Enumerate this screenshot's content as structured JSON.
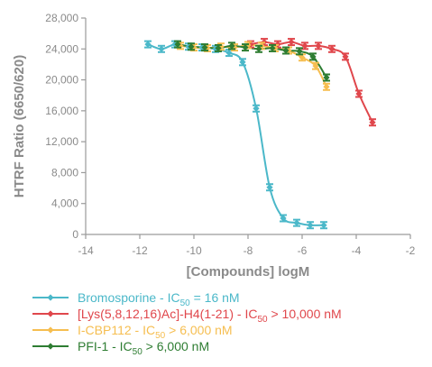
{
  "chart_data": {
    "type": "scatter",
    "xlabel": "[Compounds] logM",
    "ylabel": "HTRF Ratio (6650/620)",
    "xlim": [
      -14,
      -2
    ],
    "ylim": [
      0,
      28000
    ],
    "xticks": [
      -14,
      -12,
      -10,
      -8,
      -6,
      -4,
      -2
    ],
    "xtick_labels": [
      "-14",
      "-12",
      "-10",
      "-8",
      "-6",
      "-4",
      "-2"
    ],
    "yticks": [
      0,
      4000,
      8000,
      12000,
      16000,
      20000,
      24000,
      28000
    ],
    "ytick_labels": [
      "0",
      "4,000",
      "8,000",
      "12,000",
      "16,000",
      "20,000",
      "24,000",
      "28,000"
    ],
    "grid": false,
    "legend_position": "bottom",
    "series": [
      {
        "label_pre": "Bromosporine - IC",
        "label_sub": "50",
        "label_post": " = 16 nM",
        "color": "#4bb8c9",
        "x": [
          -11.7,
          -11.2,
          -10.7,
          -10.2,
          -9.7,
          -9.2,
          -8.7,
          -8.2,
          -7.7,
          -7.2,
          -6.7,
          -6.2,
          -5.7,
          -5.2
        ],
        "y": [
          24600,
          24000,
          24600,
          24300,
          24200,
          24000,
          23500,
          22300,
          16300,
          6100,
          2100,
          1500,
          1200,
          1200
        ],
        "curve": true
      },
      {
        "label_pre": "[Lys(5,8,12,16)Ac]-H4(1-21) - IC",
        "label_sub": "50",
        "label_post": " > 10,000 nM",
        "color": "#e0474c",
        "x": [
          -7.9,
          -7.4,
          -6.9,
          -6.4,
          -5.9,
          -5.4,
          -4.9,
          -4.4,
          -3.9,
          -3.4
        ],
        "y": [
          24600,
          24900,
          24600,
          24900,
          24400,
          24400,
          24000,
          23000,
          18200,
          14500
        ],
        "curve": true
      },
      {
        "label_pre": "I-CBP112 - IC",
        "label_sub": "50",
        "label_post": " > 6,000 nM",
        "color": "#f6be50",
        "x": [
          -10.5,
          -10.0,
          -9.5,
          -9.0,
          -8.5,
          -8.0,
          -7.5,
          -7.0,
          -6.5,
          -6.0,
          -5.5,
          -5.1
        ],
        "y": [
          24400,
          24200,
          24100,
          24300,
          24200,
          24500,
          24400,
          24100,
          23800,
          22900,
          21800,
          19100
        ],
        "curve": true
      },
      {
        "label_pre": "PFI-1 - IC",
        "label_sub": "50",
        "label_post": " > 6,000 nM",
        "color": "#2e7d32",
        "x": [
          -10.6,
          -10.1,
          -9.6,
          -9.1,
          -8.6,
          -8.1,
          -7.6,
          -7.1,
          -6.6,
          -6.1,
          -5.6,
          -5.1
        ],
        "y": [
          24600,
          24300,
          24200,
          24100,
          24400,
          24200,
          24000,
          24100,
          23800,
          23700,
          23000,
          20300
        ],
        "curve": true
      }
    ]
  }
}
